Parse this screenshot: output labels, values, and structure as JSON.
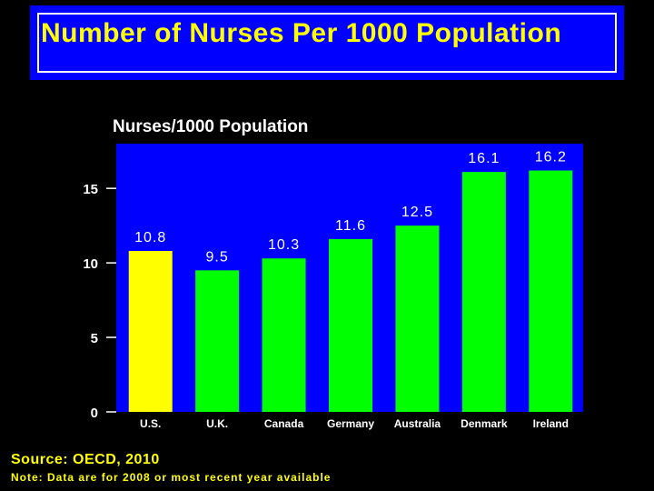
{
  "title": "Number of Nurses Per 1000 Population",
  "chart_data": {
    "type": "bar",
    "title": "Nurses/1000 Population",
    "xlabel": "",
    "ylabel": "",
    "categories": [
      "U.S.",
      "U.K.",
      "Canada",
      "Germany",
      "Australia",
      "Denmark",
      "Ireland"
    ],
    "values": [
      10.8,
      9.5,
      10.3,
      11.6,
      12.5,
      16.1,
      16.2
    ],
    "data_labels": [
      "10.8",
      "9.5",
      "10.3",
      "11.6",
      "12.5",
      "16.1",
      "16.2"
    ],
    "yticks": [
      "0",
      "5",
      "10",
      "15"
    ],
    "ylim": [
      0,
      18
    ],
    "grid": false,
    "legend": "none",
    "colors": {
      "highlight": "#ffff00",
      "bars": "#00ff00",
      "plot_background": "#0000ff",
      "text": "#ffffff"
    }
  },
  "footer": {
    "source": "Source: OECD, 2010",
    "note": "Note: Data are for 2008 or most recent year available"
  }
}
